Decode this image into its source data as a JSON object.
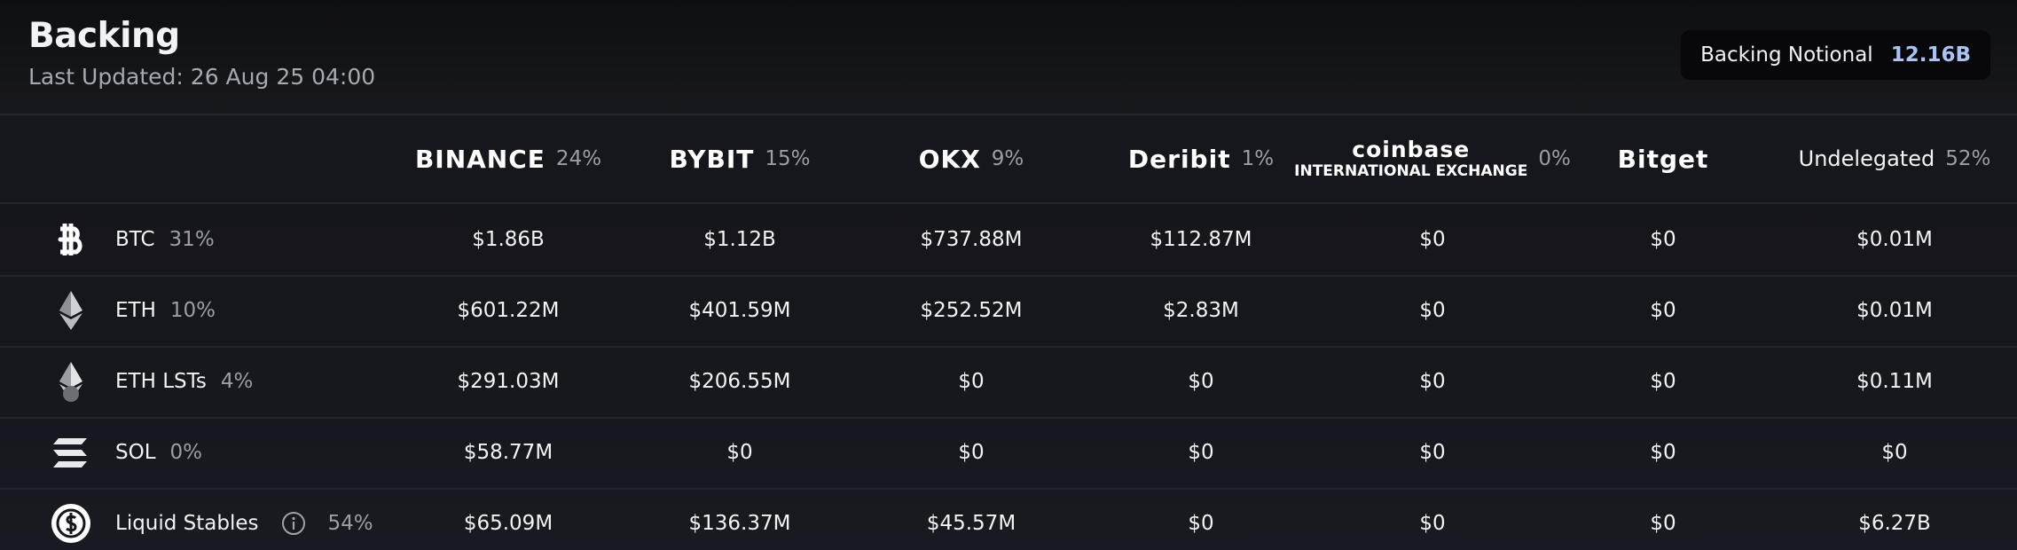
{
  "header": {
    "title": "Backing",
    "subtitle": "Last Updated: 26 Aug 25 04:00",
    "notional_label": "Backing Notional",
    "notional_value": "12.16B"
  },
  "table": {
    "columns": [
      {
        "name": "BINANCE",
        "share": "24%"
      },
      {
        "name": "BYBIT",
        "share": "15%"
      },
      {
        "name": "OKX",
        "share": "9%"
      },
      {
        "name": "Deribit",
        "share": "1%"
      },
      {
        "name": "coinbase",
        "subname": "INTERNATIONAL EXCHANGE",
        "share": "0%"
      },
      {
        "name": "Bitget"
      },
      {
        "name": "Undelegated",
        "share": "52%"
      }
    ],
    "rows": [
      {
        "asset": "BTC",
        "share": "31%",
        "values": [
          "$1.86B",
          "$1.12B",
          "$737.88M",
          "$112.87M",
          "$0",
          "$0",
          "$0.01M"
        ]
      },
      {
        "asset": "ETH",
        "share": "10%",
        "values": [
          "$601.22M",
          "$401.59M",
          "$252.52M",
          "$2.83M",
          "$0",
          "$0",
          "$0.01M"
        ]
      },
      {
        "asset": "ETH LSTs",
        "share": "4%",
        "values": [
          "$291.03M",
          "$206.55M",
          "$0",
          "$0",
          "$0",
          "$0",
          "$0.11M"
        ]
      },
      {
        "asset": "SOL",
        "share": "0%",
        "values": [
          "$58.77M",
          "$0",
          "$0",
          "$0",
          "$0",
          "$0",
          "$0"
        ]
      },
      {
        "asset": "Liquid Stables",
        "share": "54%",
        "info": true,
        "values": [
          "$65.09M",
          "$136.37M",
          "$45.57M",
          "$0",
          "$0",
          "$0",
          "$6.27B"
        ]
      }
    ]
  }
}
